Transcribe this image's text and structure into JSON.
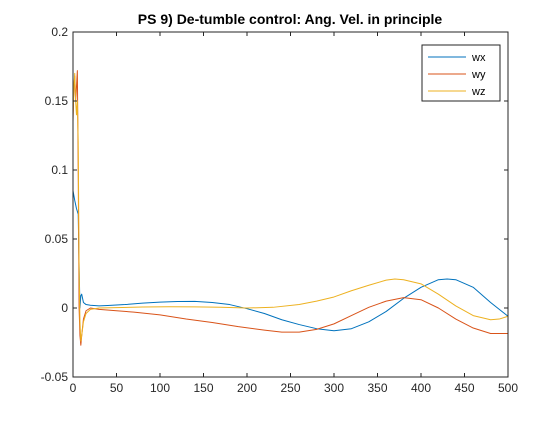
{
  "chart_data": {
    "type": "line",
    "title": "PS 9) De-tumble control: Ang. Vel. in principle",
    "xlabel": "",
    "ylabel": "",
    "xlim": [
      0,
      500
    ],
    "ylim": [
      -0.05,
      0.2
    ],
    "xticks": [
      0,
      50,
      100,
      150,
      200,
      250,
      300,
      350,
      400,
      450,
      500
    ],
    "yticks": [
      -0.05,
      0,
      0.05,
      0.1,
      0.15,
      0.2
    ],
    "xtick_labels": [
      "0",
      "50",
      "100",
      "150",
      "200",
      "250",
      "300",
      "350",
      "400",
      "450",
      "500"
    ],
    "ytick_labels": [
      "-0.05",
      "0",
      "0.05",
      "0.1",
      "0.15",
      "0.2"
    ],
    "grid": false,
    "legend_position": "top-right",
    "series": [
      {
        "name": "wx",
        "color": "#0072BD",
        "x": [
          0,
          2,
          4,
          6,
          7,
          8,
          9,
          10,
          12,
          15,
          20,
          30,
          40,
          60,
          80,
          100,
          120,
          140,
          160,
          180,
          200,
          220,
          240,
          260,
          280,
          300,
          320,
          340,
          360,
          380,
          400,
          420,
          430,
          440,
          460,
          480,
          500
        ],
        "y": [
          0.085,
          0.078,
          0.072,
          0.068,
          0.03,
          0.0,
          0.009,
          0.01,
          0.004,
          0.0025,
          0.002,
          0.0015,
          0.0018,
          0.0025,
          0.0035,
          0.0043,
          0.0047,
          0.0048,
          0.004,
          0.0025,
          -0.0005,
          -0.004,
          -0.0085,
          -0.012,
          -0.015,
          -0.0165,
          -0.015,
          -0.01,
          -0.0025,
          0.007,
          0.015,
          0.0205,
          0.021,
          0.0205,
          0.015,
          0.004,
          -0.006
        ]
      },
      {
        "name": "wy",
        "color": "#D95319",
        "x": [
          0,
          1,
          2,
          3,
          4,
          5,
          6,
          7,
          8,
          9,
          10,
          12,
          15,
          20,
          30,
          50,
          70,
          100,
          130,
          160,
          190,
          220,
          240,
          260,
          280,
          300,
          320,
          340,
          360,
          380,
          400,
          420,
          440,
          460,
          480,
          500
        ],
        "y": [
          0.135,
          0.16,
          0.168,
          0.15,
          0.16,
          0.172,
          0.1,
          0.0,
          -0.02,
          -0.027,
          -0.02,
          -0.008,
          -0.002,
          0.0,
          -0.001,
          -0.002,
          -0.003,
          -0.005,
          -0.008,
          -0.0105,
          -0.0135,
          -0.016,
          -0.0175,
          -0.0175,
          -0.0155,
          -0.0115,
          -0.0055,
          0.0005,
          0.005,
          0.0075,
          0.006,
          0.0,
          -0.008,
          -0.0145,
          -0.0185,
          -0.0185
        ]
      },
      {
        "name": "wz",
        "color": "#EDB120",
        "x": [
          0,
          1,
          2,
          3,
          4,
          5,
          6,
          7,
          8,
          9,
          10,
          12,
          15,
          20,
          30,
          50,
          80,
          110,
          140,
          170,
          200,
          230,
          260,
          280,
          300,
          320,
          340,
          360,
          370,
          380,
          400,
          420,
          440,
          460,
          480,
          490,
          500
        ],
        "y": [
          0.14,
          0.16,
          0.17,
          0.15,
          0.14,
          0.15,
          0.12,
          0.03,
          -0.01,
          -0.024,
          -0.02,
          -0.01,
          -0.004,
          -0.001,
          0.0,
          0.0003,
          0.0007,
          0.0009,
          0.0008,
          0.0005,
          0.0,
          0.0005,
          0.0025,
          0.005,
          0.008,
          0.0125,
          0.0165,
          0.0202,
          0.021,
          0.0205,
          0.0175,
          0.01,
          0.0015,
          -0.0055,
          -0.0085,
          -0.008,
          -0.006
        ]
      }
    ]
  }
}
